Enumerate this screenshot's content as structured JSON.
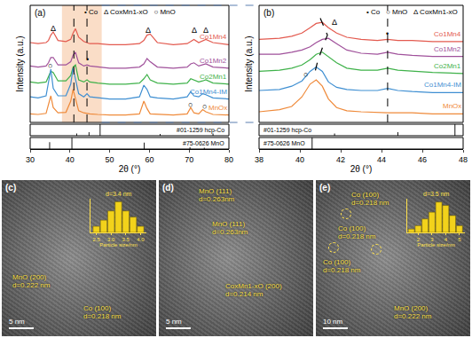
{
  "chart_data": [
    {
      "type": "line",
      "title": "(a)",
      "x_label": "2θ (°)",
      "y_label": "Intensity (a.u.)",
      "key": [
        "• Co",
        "Δ CoxMn1-xO",
        "○ MnO"
      ],
      "x": [
        30,
        32,
        34,
        34.6,
        35.2,
        35.8,
        37,
        39,
        40.2,
        40.8,
        41.4,
        42.2,
        43.5,
        44.3,
        45,
        47,
        50,
        54,
        57.5,
        58.6,
        59.4,
        60.2,
        62,
        66,
        69.5,
        70.4,
        71.2,
        72.4,
        73.4,
        74.2,
        76,
        80
      ],
      "xlim": [
        30,
        80
      ],
      "xticks": [
        30,
        40,
        50,
        60,
        70,
        80
      ],
      "ylim": [
        0,
        110
      ],
      "tick_labels": "x",
      "series": [
        {
          "name": "Co1Mn4",
          "color": "#e35a4f",
          "values": [
            75,
            74,
            75,
            77,
            82,
            85,
            77,
            76,
            78,
            84,
            88,
            80,
            76,
            75,
            74,
            74,
            73,
            73,
            74,
            77,
            82,
            83,
            75,
            73,
            74,
            76,
            78,
            75,
            77,
            78,
            75,
            73
          ]
        },
        {
          "name": "Co1Mn2",
          "color": "#a0519b",
          "values": [
            53,
            52,
            53,
            56,
            61,
            61,
            54,
            54,
            57,
            63,
            66,
            56,
            53,
            54,
            53,
            52,
            51,
            51,
            52,
            55,
            60,
            57,
            52,
            51,
            52,
            55,
            56,
            53,
            54,
            55,
            52,
            51
          ]
        },
        {
          "name": "Co2Mn1",
          "color": "#3fb24a",
          "values": [
            38,
            37,
            38,
            43,
            48,
            47,
            39,
            39,
            44,
            52,
            54,
            40,
            38,
            40,
            38,
            37,
            36,
            36,
            37,
            41,
            45,
            40,
            37,
            36,
            37,
            41,
            40,
            38,
            39,
            40,
            37,
            36
          ]
        },
        {
          "name": "Co1Mn4-IM",
          "color": "#3f8fd2",
          "values": [
            24,
            23,
            25,
            36,
            50,
            32,
            25,
            25,
            36,
            51,
            40,
            27,
            24,
            27,
            24,
            23,
            22,
            22,
            24,
            35,
            31,
            24,
            23,
            22,
            24,
            29,
            25,
            24,
            27,
            26,
            23,
            22
          ]
        },
        {
          "name": "MnOx",
          "color": "#ef8a3a",
          "values": [
            8,
            7.5,
            8.5,
            18,
            25,
            14,
            9,
            9.5,
            20,
            31,
            22,
            11,
            9,
            8.5,
            8,
            7.5,
            7,
            7,
            8,
            20,
            13,
            8,
            7.5,
            7,
            8,
            14,
            9,
            8,
            12,
            10,
            7.5,
            7
          ]
        }
      ],
      "references": [
        {
          "name": "#01-1259 hcp-Co",
          "color": "#000000",
          "x": [
            41.7,
            44.8,
            47.6,
            62.7,
            76.0
          ],
          "values": [
            20,
            30,
            100,
            15,
            20
          ],
          "ylim": [
            0,
            100
          ]
        },
        {
          "name": "#75-0626 MnO",
          "color": "#000000",
          "x": [
            34.9,
            40.5,
            58.7,
            70.2,
            73.8
          ],
          "values": [
            60,
            100,
            55,
            15,
            12
          ],
          "ylim": [
            0,
            100
          ]
        }
      ],
      "annotations": [
        {
          "text": "Δ",
          "x": 35.8,
          "y": 88
        },
        {
          "text": "Δ",
          "x": 59.6,
          "y": 87
        },
        {
          "text": "Δ",
          "x": 71.2,
          "y": 87
        },
        {
          "text": "Δ",
          "x": 74.2,
          "y": 87
        },
        {
          "text": "•",
          "x": 44.3,
          "y": 59
        },
        {
          "text": "○",
          "x": 35.0,
          "y": 53
        },
        {
          "text": "○",
          "x": 70.3,
          "y": 17
        },
        {
          "text": "○",
          "x": 73.9,
          "y": 15
        }
      ],
      "vlines": [
        41.0,
        44.3
      ]
    },
    {
      "type": "line",
      "title": "(b)",
      "x_label": "2θ (°)",
      "y_label": "Intensity (a.u.)",
      "key": [
        "• Co",
        "○ MnO",
        "Δ CoxMn1-xO"
      ],
      "x": [
        38,
        39,
        39.6,
        40.1,
        40.5,
        40.8,
        41.1,
        41.4,
        41.8,
        42.3,
        43,
        43.8,
        44.3,
        44.8,
        45.5,
        46.5,
        48
      ],
      "xlim": [
        38,
        48
      ],
      "xticks": [
        38,
        40,
        42,
        44,
        46,
        48
      ],
      "ylim": [
        0,
        110
      ],
      "tick_labels": "x",
      "series": [
        {
          "name": "Co1Mn4",
          "color": "#e35a4f",
          "values": [
            78,
            79,
            81,
            84,
            89,
            93,
            94,
            89,
            84,
            80,
            78,
            77,
            78,
            77,
            77,
            76,
            76
          ]
        },
        {
          "name": "Co1Mn2",
          "color": "#a0519b",
          "values": [
            64,
            64,
            66,
            68,
            71,
            75,
            78,
            79,
            74,
            68,
            65,
            64,
            66,
            64,
            63,
            62,
            62
          ]
        },
        {
          "name": "Co2Mn1",
          "color": "#3fb24a",
          "values": [
            48,
            49,
            51,
            54,
            59,
            64,
            66,
            62,
            56,
            51,
            49,
            49,
            51,
            49,
            48,
            47,
            46
          ]
        },
        {
          "name": "Co1Mn4-IM",
          "color": "#3f8fd2",
          "values": [
            30,
            31,
            34,
            39,
            48,
            52,
            48,
            38,
            33,
            31,
            30,
            30,
            32,
            30,
            29,
            28,
            28
          ]
        },
        {
          "name": "MnOx",
          "color": "#ef8a3a",
          "values": [
            10,
            12,
            15,
            24,
            36,
            40,
            34,
            22,
            14,
            11,
            10,
            9,
            9,
            9,
            9,
            8,
            8
          ]
        },
        {
          "color": "#000000",
          "line_style": "dashed",
          "x": [
            41.0,
            41.35,
            41.1,
            40.85,
            40.7
          ],
          "values": [
            98,
            82,
            70,
            56,
            44
          ]
        }
      ],
      "references": [
        {
          "name": "#01-1259 hcp-Co",
          "color": "#000000",
          "x": [
            41.7,
            44.8,
            47.6
          ],
          "values": [
            20,
            30,
            100
          ],
          "ylim": [
            0,
            100
          ]
        },
        {
          "name": "#75-0626 MnO",
          "color": "#000000",
          "x": [
            40.6
          ],
          "values": [
            100
          ],
          "ylim": [
            0,
            100
          ]
        }
      ],
      "annotations": [
        {
          "text": "Δ",
          "x": 41.7,
          "y": 94
        },
        {
          "text": "•",
          "x": 44.3,
          "y": 83
        },
        {
          "text": "○",
          "x": 40.3,
          "y": 45
        }
      ],
      "vlines": [
        44.3
      ]
    },
    {
      "type": "bar",
      "title": "d=3.4 nm",
      "x_label": "Particle size/nm",
      "color": "#f2d21b",
      "x": [
        2.5,
        2.75,
        3.0,
        3.25,
        3.5,
        3.75,
        4.0
      ],
      "values": [
        2,
        4,
        7,
        10,
        7,
        5,
        2
      ],
      "xlim": [
        2.3,
        4.2
      ],
      "xticks": [
        2.5,
        {
          "value": 3,
          "label": "3.0"
        },
        3.5,
        {
          "value": 4,
          "label": "4.0"
        }
      ],
      "ylim": [
        0,
        11
      ],
      "tick_labels": "x"
    },
    {
      "type": "bar",
      "title": "d=3.5 nm",
      "x_label": "Particle size/nm",
      "color": "#f2d21b",
      "x": [
        1.5,
        2,
        2.5,
        3,
        3.5,
        4,
        4.5,
        5
      ],
      "values": [
        1,
        2,
        4,
        6,
        9,
        8,
        5,
        2
      ],
      "xlim": [
        1.2,
        5.4
      ],
      "xticks": [
        2,
        3,
        4,
        5
      ],
      "ylim": [
        0,
        10
      ],
      "tick_labels": "x"
    }
  ],
  "images": [
    {
      "label": "(c)",
      "scale_bar": "5 nm",
      "annotations": [
        [
          "MnO (200)",
          "d=0.222 nm"
        ],
        [
          "Co (100)",
          "d=0.218 nm"
        ]
      ]
    },
    {
      "label": "(d)",
      "scale_bar": "5 nm",
      "annotations": [
        [
          "MnO (111)",
          "d=0.263nm"
        ],
        [
          "MnO (111)",
          "d=0.263nm"
        ],
        [
          "CoxMn1-xO (200)",
          "d=0.214 nm"
        ]
      ]
    },
    {
      "label": "(e)",
      "scale_bar": "10 nm",
      "annotations": [
        [
          "Co (100)",
          "d=0.218 nm"
        ],
        [
          "Co (100)",
          "d=0.218 nm"
        ],
        [
          "Co (100)",
          "d=0.218 nm"
        ],
        [
          "MnO (200)",
          "d=0.222 nm"
        ]
      ]
    }
  ]
}
